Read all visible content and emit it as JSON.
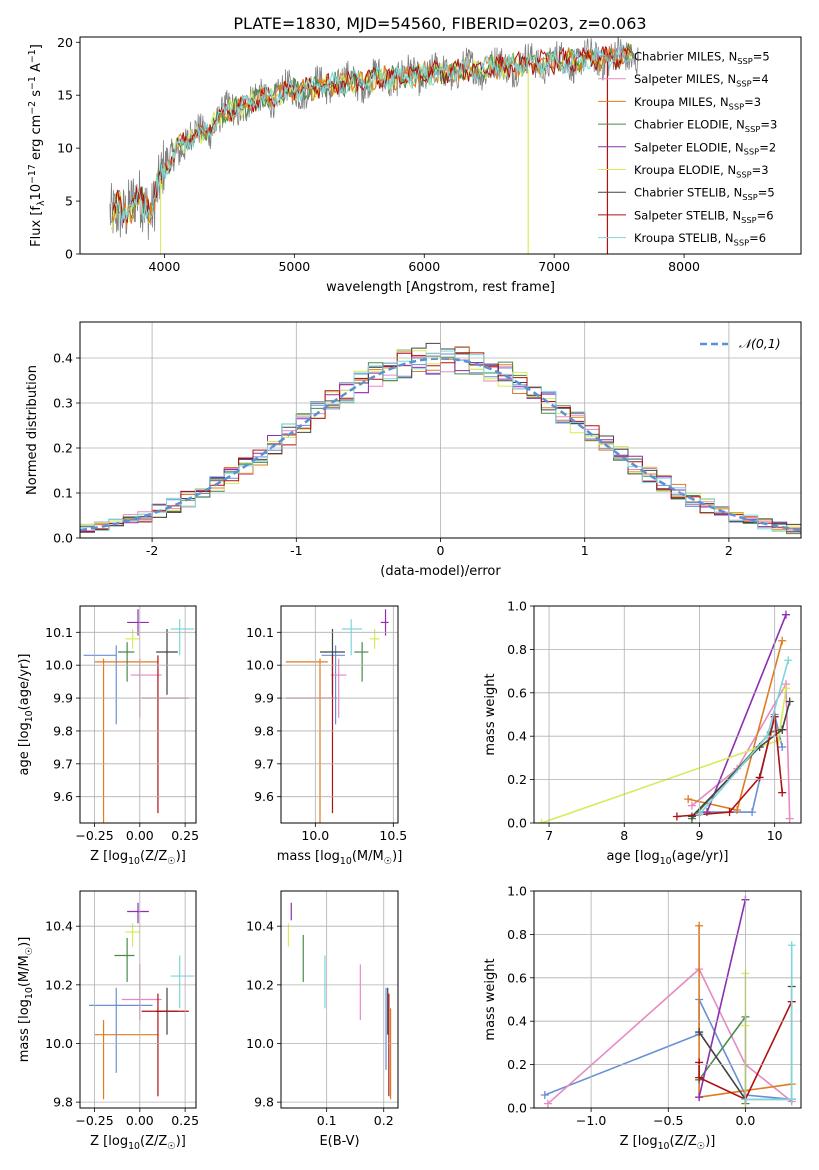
{
  "figure_title": "PLATE=1830, MJD=54560, FIBERID=0203, z=0.063",
  "colors": {
    "chabrier_miles": "#6a8fd4",
    "salpeter_miles": "#e78ac3",
    "kroupa_miles": "#e07b20",
    "chabrier_elodie": "#4a8a4a",
    "salpeter_elodie": "#8e2fb0",
    "kroupa_elodie": "#d8ec5a",
    "chabrier_stelib": "#444444",
    "salpeter_stelib": "#b01010",
    "kroupa_stelib": "#7ed6dc",
    "normal_curve": "#5b8fd6"
  },
  "chart_data": [
    {
      "type": "line",
      "panel": "spectrum",
      "xlabel": "wavelength [Angstrom, rest frame]",
      "ylabel": "Flux [fλ10⁻¹⁷ erg cm⁻² s⁻¹ A⁻¹]",
      "xlim": [
        3350,
        8900
      ],
      "ylim": [
        0,
        20.5
      ],
      "xticks": [
        4000,
        5000,
        6000,
        7000,
        8000
      ],
      "yticks": [
        0,
        5,
        10,
        15,
        20
      ],
      "grid": false,
      "legend_position": "right",
      "legend": [
        "Chabrier MILES, N_SSP=5",
        "Salpeter MILES, N_SSP=4",
        "Kroupa MILES, N_SSP=3",
        "Chabrier ELODIE, N_SSP=3",
        "Salpeter ELODIE, N_SSP=2",
        "Kroupa ELODIE, N_SSP=3",
        "Chabrier STELIB, N_SSP=5",
        "Salpeter STELIB, N_SSP=6",
        "Kroupa STELIB, N_SSP=6"
      ],
      "continuum": {
        "x": [
          3580,
          3650,
          3700,
          3800,
          3900,
          4000,
          4100,
          4200,
          4300,
          4400,
          4500,
          4700,
          5000,
          5300,
          5600,
          6000,
          6400,
          6800,
          7200,
          7600,
          8000,
          8400,
          8800
        ],
        "y": [
          3.5,
          4.5,
          4.0,
          5.0,
          4.5,
          8.0,
          10.0,
          11.0,
          11.5,
          12.5,
          13.5,
          14.5,
          15.5,
          16.0,
          16.5,
          17.0,
          17.5,
          18.0,
          18.3,
          18.7,
          18.0,
          17.5,
          17.2
        ]
      }
    },
    {
      "type": "bar",
      "panel": "residual-histogram",
      "xlabel": "(data-model)/error",
      "ylabel": "Normed distribution",
      "xlim": [
        -2.5,
        2.5
      ],
      "ylim": [
        0,
        0.48
      ],
      "xticks": [
        -2,
        -1,
        0,
        1,
        2
      ],
      "yticks": [
        0.0,
        0.1,
        0.2,
        0.3,
        0.4
      ],
      "grid": true,
      "legend": [
        "𝒩(0,1)"
      ],
      "legend_position": "upper right",
      "bin_width": 0.1,
      "bin_start": -2.5
    },
    {
      "type": "scatter",
      "panel": "age-vs-Z",
      "xlabel": "Z [log10(Z/Z☉)]",
      "ylabel": "age  [log10(age/yr)]",
      "xlim": [
        -0.33,
        0.31
      ],
      "ylim": [
        9.52,
        10.18
      ],
      "xticks": [
        -0.25,
        0.0,
        0.25
      ],
      "xticklabels": [
        "−0.25",
        "0.00",
        "0.25"
      ],
      "yticks": [
        9.6,
        9.7,
        9.8,
        9.9,
        10.0,
        10.1
      ],
      "grid": true,
      "points": [
        {
          "s": "chabrier_miles",
          "x": -0.13,
          "y": 10.03,
          "ex": [
            -0.18,
            0.0
          ],
          "ey": [
            9.82,
            10.06
          ]
        },
        {
          "s": "salpeter_miles",
          "x": 0.0,
          "y": 9.97,
          "ex": [
            -0.05,
            0.12
          ],
          "ey": [
            9.84,
            10.02
          ]
        },
        {
          "s": "kroupa_miles",
          "x": -0.2,
          "y": 10.01,
          "ex": [
            -0.05,
            0.3
          ],
          "ey": [
            9.3,
            10.02
          ]
        },
        {
          "s": "chabrier_elodie",
          "x": -0.07,
          "y": 10.04,
          "ex": [
            -0.05,
            0.04
          ],
          "ey": [
            9.95,
            10.07
          ]
        },
        {
          "s": "salpeter_elodie",
          "x": -0.01,
          "y": 10.13,
          "ex": [
            -0.06,
            0.06
          ],
          "ey": [
            10.09,
            10.17
          ]
        },
        {
          "s": "kroupa_elodie",
          "x": -0.04,
          "y": 10.08,
          "ex": [
            -0.04,
            0.04
          ],
          "ey": [
            10.05,
            10.11
          ]
        },
        {
          "s": "chabrier_stelib",
          "x": 0.15,
          "y": 10.04,
          "ex": [
            -0.06,
            0.06
          ],
          "ey": [
            9.91,
            10.11
          ]
        },
        {
          "s": "salpeter_stelib",
          "x": 0.1,
          "y": 9.9,
          "ex": [
            -0.09,
            0.17
          ],
          "ey": [
            9.55,
            10.03
          ]
        },
        {
          "s": "kroupa_stelib",
          "x": 0.22,
          "y": 10.11,
          "ex": [
            -0.05,
            0.08
          ],
          "ey": [
            10.03,
            10.14
          ]
        }
      ]
    },
    {
      "type": "scatter",
      "panel": "age-vs-mass",
      "xlabel": "mass [log10(M/M☉)]",
      "xlim": [
        9.78,
        10.53
      ],
      "ylim": [
        9.52,
        10.18
      ],
      "xticks": [
        10.0,
        10.5
      ],
      "yticks": [
        9.6,
        9.7,
        9.8,
        9.9,
        10.0,
        10.1
      ],
      "grid": true,
      "points": [
        {
          "s": "chabrier_miles",
          "x": 10.13,
          "y": 10.03,
          "ex": [
            -0.09,
            0.06
          ],
          "ey": [
            9.82,
            10.06
          ]
        },
        {
          "s": "salpeter_miles",
          "x": 10.15,
          "y": 9.97,
          "ex": [
            -0.05,
            0.05
          ],
          "ey": [
            9.84,
            10.02
          ]
        },
        {
          "s": "kroupa_miles",
          "x": 10.03,
          "y": 10.01,
          "ex": [
            -0.22,
            0.05
          ],
          "ey": [
            9.3,
            10.02
          ]
        },
        {
          "s": "chabrier_elodie",
          "x": 10.3,
          "y": 10.04,
          "ex": [
            -0.05,
            0.04
          ],
          "ey": [
            9.95,
            10.07
          ]
        },
        {
          "s": "salpeter_elodie",
          "x": 10.45,
          "y": 10.13,
          "ex": [
            -0.03,
            0.02
          ],
          "ey": [
            10.09,
            10.17
          ]
        },
        {
          "s": "kroupa_elodie",
          "x": 10.38,
          "y": 10.08,
          "ex": [
            -0.03,
            0.03
          ],
          "ey": [
            10.05,
            10.11
          ]
        },
        {
          "s": "chabrier_stelib",
          "x": 10.11,
          "y": 10.04,
          "ex": [
            -0.08,
            0.08
          ],
          "ey": [
            9.91,
            10.11
          ]
        },
        {
          "s": "salpeter_stelib",
          "x": 10.11,
          "y": 9.9,
          "ex": [
            -0.3,
            0.03
          ],
          "ey": [
            9.55,
            10.03
          ]
        },
        {
          "s": "kroupa_stelib",
          "x": 10.23,
          "y": 10.11,
          "ex": [
            -0.06,
            0.07
          ],
          "ey": [
            10.03,
            10.14
          ]
        }
      ]
    },
    {
      "type": "line",
      "panel": "weight-vs-age",
      "xlabel": "age  [log10(age/yr)]",
      "ylabel": "mass weight",
      "xlim": [
        6.8,
        10.35
      ],
      "ylim": [
        0.0,
        1.0
      ],
      "xticks": [
        7,
        8,
        9,
        10
      ],
      "yticks": [
        0.0,
        0.2,
        0.4,
        0.6,
        0.8,
        1.0
      ],
      "grid": true,
      "series": [
        {
          "s": "chabrier_miles",
          "x": [
            9.0,
            9.7,
            10.0,
            10.1
          ],
          "y": [
            0.05,
            0.05,
            0.5,
            0.35
          ]
        },
        {
          "s": "salpeter_miles",
          "x": [
            8.9,
            9.5,
            10.15,
            10.2
          ],
          "y": [
            0.08,
            0.25,
            0.64,
            0.02
          ]
        },
        {
          "s": "kroupa_miles",
          "x": [
            8.85,
            9.5,
            10.1
          ],
          "y": [
            0.11,
            0.06,
            0.84
          ]
        },
        {
          "s": "chabrier_elodie",
          "x": [
            8.9,
            9.95,
            10.1
          ],
          "y": [
            0.02,
            0.42,
            0.43
          ]
        },
        {
          "s": "salpeter_elodie",
          "x": [
            9.1,
            10.15
          ],
          "y": [
            0.05,
            0.96
          ]
        },
        {
          "s": "kroupa_elodie",
          "x": [
            6.9,
            10.05,
            10.15
          ],
          "y": [
            0.0,
            0.38,
            0.62
          ]
        },
        {
          "s": "chabrier_stelib",
          "x": [
            8.9,
            9.8,
            10.1,
            10.2
          ],
          "y": [
            0.03,
            0.35,
            0.43,
            0.56
          ]
        },
        {
          "s": "salpeter_stelib",
          "x": [
            8.7,
            9.4,
            9.8,
            10.0,
            10.1
          ],
          "y": [
            0.03,
            0.05,
            0.21,
            0.49,
            0.14
          ]
        },
        {
          "s": "kroupa_stelib",
          "x": [
            9.0,
            9.9,
            10.18
          ],
          "y": [
            0.04,
            0.4,
            0.75
          ]
        }
      ]
    },
    {
      "type": "scatter",
      "panel": "mass-vs-Z",
      "xlabel": "Z [log10(Z/Z☉)]",
      "ylabel": "mass [log10(M/M☉)]",
      "xlim": [
        -0.33,
        0.31
      ],
      "ylim": [
        9.78,
        10.52
      ],
      "xticks": [
        -0.25,
        0.0,
        0.25
      ],
      "xticklabels": [
        "−0.25",
        "0.00",
        "0.25"
      ],
      "yticks": [
        9.8,
        10.0,
        10.2,
        10.4
      ],
      "grid": true,
      "points": [
        {
          "s": "chabrier_miles",
          "x": -0.13,
          "y": 10.13,
          "ex": [
            -0.15,
            0.2
          ],
          "ey": [
            9.9,
            10.19
          ]
        },
        {
          "s": "salpeter_miles",
          "x": 0.0,
          "y": 10.15,
          "ex": [
            -0.1,
            0.12
          ],
          "ey": [
            10.08,
            10.27
          ]
        },
        {
          "s": "kroupa_miles",
          "x": -0.2,
          "y": 10.03,
          "ex": [
            -0.05,
            0.3
          ],
          "ey": [
            9.81,
            10.08
          ]
        },
        {
          "s": "chabrier_elodie",
          "x": -0.07,
          "y": 10.3,
          "ex": [
            -0.07,
            0.04
          ],
          "ey": [
            10.21,
            10.36
          ]
        },
        {
          "s": "salpeter_elodie",
          "x": -0.01,
          "y": 10.45,
          "ex": [
            -0.06,
            0.06
          ],
          "ey": [
            10.41,
            10.48
          ]
        },
        {
          "s": "kroupa_elodie",
          "x": -0.04,
          "y": 10.38,
          "ex": [
            -0.04,
            0.04
          ],
          "ey": [
            10.33,
            10.41
          ]
        },
        {
          "s": "chabrier_stelib",
          "x": 0.15,
          "y": 10.11,
          "ex": [
            -0.06,
            0.06
          ],
          "ey": [
            10.03,
            10.19
          ]
        },
        {
          "s": "salpeter_stelib",
          "x": 0.1,
          "y": 10.11,
          "ex": [
            -0.09,
            0.17
          ],
          "ey": [
            9.82,
            10.17
          ]
        },
        {
          "s": "kroupa_stelib",
          "x": 0.22,
          "y": 10.23,
          "ex": [
            -0.05,
            0.08
          ],
          "ey": [
            10.12,
            10.3
          ]
        }
      ]
    },
    {
      "type": "scatter",
      "panel": "mass-vs-EBV",
      "xlabel": "E(B-V)",
      "xlim": [
        0.02,
        0.225
      ],
      "ylim": [
        9.78,
        10.52
      ],
      "xticks": [
        0.1,
        0.2
      ],
      "yticks": [
        9.8,
        10.0,
        10.2,
        10.4
      ],
      "grid": true,
      "points": [
        {
          "s": "chabrier_miles",
          "x": 0.204,
          "ey": [
            9.91,
            10.19
          ]
        },
        {
          "s": "salpeter_miles",
          "x": 0.159,
          "ey": [
            10.08,
            10.27
          ]
        },
        {
          "s": "kroupa_miles",
          "x": 0.212,
          "ey": [
            9.81,
            10.12
          ]
        },
        {
          "s": "chabrier_elodie",
          "x": 0.059,
          "ey": [
            10.21,
            10.37
          ]
        },
        {
          "s": "salpeter_elodie",
          "x": 0.038,
          "ey": [
            10.42,
            10.48
          ]
        },
        {
          "s": "kroupa_elodie",
          "x": 0.033,
          "ey": [
            10.33,
            10.41
          ]
        },
        {
          "s": "chabrier_stelib",
          "x": 0.207,
          "ey": [
            10.03,
            10.19
          ]
        },
        {
          "s": "salpeter_stelib",
          "x": 0.209,
          "ey": [
            9.82,
            10.17
          ]
        },
        {
          "s": "kroupa_stelib",
          "x": 0.097,
          "ey": [
            10.12,
            10.3
          ]
        }
      ]
    },
    {
      "type": "line",
      "panel": "weight-vs-Z",
      "xlabel": "Z [log10(Z/Z☉)]",
      "ylabel": "mass weight",
      "xlim": [
        -1.37,
        0.36
      ],
      "ylim": [
        0.0,
        1.0
      ],
      "xticks": [
        -1.0,
        -0.5,
        0.0
      ],
      "xticklabels": [
        "−1.0",
        "−0.5",
        "0.0"
      ],
      "yticks": [
        0.0,
        0.2,
        0.4,
        0.6,
        0.8,
        1.0
      ],
      "grid": true,
      "series": [
        {
          "s": "chabrier_miles",
          "x": [
            -1.3,
            -0.3,
            -0.3,
            0.0,
            0.3
          ],
          "y": [
            0.06,
            0.34,
            0.5,
            0.06,
            0.04
          ]
        },
        {
          "s": "salpeter_miles",
          "x": [
            -1.28,
            -0.3,
            0.0,
            0.3
          ],
          "y": [
            0.02,
            0.64,
            0.2,
            0.03
          ]
        },
        {
          "s": "kroupa_miles",
          "x": [
            -0.3,
            -0.3,
            0.0,
            0.3
          ],
          "y": [
            0.84,
            0.05,
            0.08,
            0.11
          ]
        },
        {
          "s": "chabrier_elodie",
          "x": [
            -0.3,
            0.0,
            0.0
          ],
          "y": [
            0.13,
            0.42,
            0.02
          ]
        },
        {
          "s": "salpeter_elodie",
          "x": [
            -0.3,
            0.0
          ],
          "y": [
            0.05,
            0.96
          ]
        },
        {
          "s": "kroupa_elodie",
          "x": [
            0.0,
            0.0,
            0.0
          ],
          "y": [
            0.0,
            0.38,
            0.62
          ]
        },
        {
          "s": "chabrier_stelib",
          "x": [
            -0.3,
            0.0,
            0.3,
            0.3
          ],
          "y": [
            0.35,
            0.04,
            0.04,
            0.56
          ]
        },
        {
          "s": "salpeter_stelib",
          "x": [
            -0.3,
            -0.3,
            0.0,
            0.3
          ],
          "y": [
            0.21,
            0.14,
            0.04,
            0.49
          ]
        },
        {
          "s": "kroupa_stelib",
          "x": [
            0.0,
            0.3,
            0.3
          ],
          "y": [
            0.04,
            0.04,
            0.75
          ]
        }
      ]
    }
  ]
}
